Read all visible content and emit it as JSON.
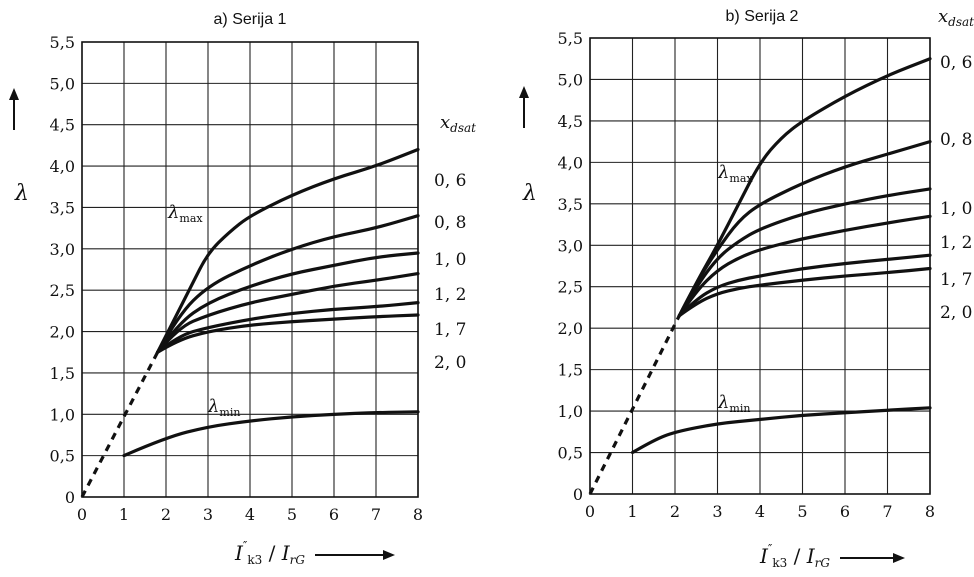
{
  "chart_data": [
    {
      "type": "line",
      "title": "a) Serija 1",
      "xlabel": "I\"k3 / IrG",
      "ylabel": "λ",
      "legend_title": "xdsat",
      "xlim": [
        0,
        8
      ],
      "ylim": [
        0,
        5.5
      ],
      "x_ticks": [
        "0",
        "1",
        "2",
        "3",
        "4",
        "5",
        "6",
        "7",
        "8"
      ],
      "y_ticks": [
        "0",
        "0,5",
        "1,0",
        "1,5",
        "2,0",
        "2,5",
        "3,0",
        "3,5",
        "4,0",
        "4,5",
        "5,0",
        "5,5"
      ],
      "annotations": [
        "λmax",
        "λmin"
      ],
      "dashed_line": {
        "x": [
          0,
          1.8
        ],
        "y": [
          0,
          1.75
        ]
      },
      "series": [
        {
          "name": "0, 6",
          "x": [
            1.8,
            2.2,
            2.6,
            3.0,
            3.5,
            4.0,
            5.0,
            6.0,
            7.0,
            8.0
          ],
          "y": [
            1.75,
            2.15,
            2.55,
            2.95,
            3.2,
            3.4,
            3.65,
            3.85,
            4.0,
            4.2
          ]
        },
        {
          "name": "0, 8",
          "x": [
            1.8,
            2.3,
            3.0,
            4.0,
            5.0,
            6.0,
            7.0,
            8.0
          ],
          "y": [
            1.75,
            2.2,
            2.55,
            2.8,
            3.0,
            3.15,
            3.25,
            3.4
          ]
        },
        {
          "name": "1, 0",
          "x": [
            1.8,
            2.3,
            3.0,
            4.0,
            5.0,
            6.0,
            7.0,
            8.0
          ],
          "y": [
            1.75,
            2.1,
            2.35,
            2.55,
            2.7,
            2.8,
            2.9,
            2.95
          ]
        },
        {
          "name": "1, 2",
          "x": [
            1.8,
            2.3,
            3.0,
            4.0,
            5.0,
            6.0,
            7.0,
            8.0
          ],
          "y": [
            1.75,
            2.05,
            2.2,
            2.35,
            2.45,
            2.55,
            2.62,
            2.7
          ]
        },
        {
          "name": "1, 7",
          "x": [
            1.8,
            2.3,
            3.0,
            4.0,
            5.0,
            6.0,
            7.0,
            8.0
          ],
          "y": [
            1.75,
            1.95,
            2.05,
            2.15,
            2.22,
            2.27,
            2.3,
            2.35
          ]
        },
        {
          "name": "2, 0",
          "x": [
            1.8,
            2.3,
            3.0,
            4.0,
            5.0,
            6.0,
            7.0,
            8.0
          ],
          "y": [
            1.75,
            1.9,
            2.0,
            2.08,
            2.12,
            2.15,
            2.18,
            2.2
          ]
        },
        {
          "name": "λmin",
          "x": [
            1.0,
            2.0,
            3.0,
            4.0,
            5.0,
            6.0,
            7.0,
            8.0
          ],
          "y": [
            0.5,
            0.72,
            0.85,
            0.92,
            0.97,
            1.0,
            1.02,
            1.03
          ]
        }
      ]
    },
    {
      "type": "line",
      "title": "b) Serija 2",
      "xlabel": "I\"k3 / IrG",
      "ylabel": "λ",
      "legend_title": "xdsat",
      "xlim": [
        0,
        8
      ],
      "ylim": [
        0,
        5.5
      ],
      "x_ticks": [
        "0",
        "1",
        "2",
        "3",
        "4",
        "5",
        "6",
        "7",
        "8"
      ],
      "y_ticks": [
        "0",
        "0,5",
        "1,0",
        "1,5",
        "2,0",
        "2,5",
        "3,0",
        "3,5",
        "4,0",
        "4,5",
        "5,0",
        "5,5"
      ],
      "annotations": [
        "λmax",
        "λmin"
      ],
      "dashed_line": {
        "x": [
          0,
          2.1
        ],
        "y": [
          0,
          2.15
        ]
      },
      "series": [
        {
          "name": "0, 6",
          "x": [
            2.1,
            2.5,
            3.0,
            3.5,
            4.0,
            4.5,
            5.0,
            6.0,
            7.0,
            8.0
          ],
          "y": [
            2.15,
            2.55,
            3.0,
            3.5,
            4.0,
            4.3,
            4.5,
            4.8,
            5.05,
            5.25
          ]
        },
        {
          "name": "0, 8",
          "x": [
            2.1,
            2.5,
            3.0,
            3.5,
            4.0,
            5.0,
            6.0,
            7.0,
            8.0
          ],
          "y": [
            2.15,
            2.55,
            2.95,
            3.3,
            3.5,
            3.75,
            3.95,
            4.1,
            4.25
          ]
        },
        {
          "name": "1, 0",
          "x": [
            2.1,
            2.5,
            3.0,
            3.5,
            4.0,
            5.0,
            6.0,
            7.0,
            8.0
          ],
          "y": [
            2.15,
            2.5,
            2.85,
            3.05,
            3.2,
            3.38,
            3.5,
            3.6,
            3.68
          ]
        },
        {
          "name": "1, 2",
          "x": [
            2.1,
            2.5,
            3.0,
            3.5,
            4.0,
            5.0,
            6.0,
            7.0,
            8.0
          ],
          "y": [
            2.15,
            2.45,
            2.7,
            2.85,
            2.95,
            3.08,
            3.18,
            3.27,
            3.35
          ]
        },
        {
          "name": "1, 7",
          "x": [
            2.1,
            2.5,
            3.0,
            3.5,
            4.0,
            5.0,
            6.0,
            7.0,
            8.0
          ],
          "y": [
            2.15,
            2.35,
            2.5,
            2.58,
            2.63,
            2.72,
            2.78,
            2.83,
            2.88
          ]
        },
        {
          "name": "2, 0",
          "x": [
            2.1,
            2.5,
            3.0,
            3.5,
            4.0,
            5.0,
            6.0,
            7.0,
            8.0
          ],
          "y": [
            2.15,
            2.3,
            2.42,
            2.48,
            2.52,
            2.58,
            2.63,
            2.67,
            2.72
          ]
        },
        {
          "name": "λmin",
          "x": [
            1.0,
            1.5,
            2.0,
            3.0,
            4.0,
            5.0,
            6.0,
            7.0,
            8.0
          ],
          "y": [
            0.5,
            0.65,
            0.75,
            0.85,
            0.9,
            0.95,
            0.98,
            1.01,
            1.04
          ]
        }
      ]
    }
  ]
}
